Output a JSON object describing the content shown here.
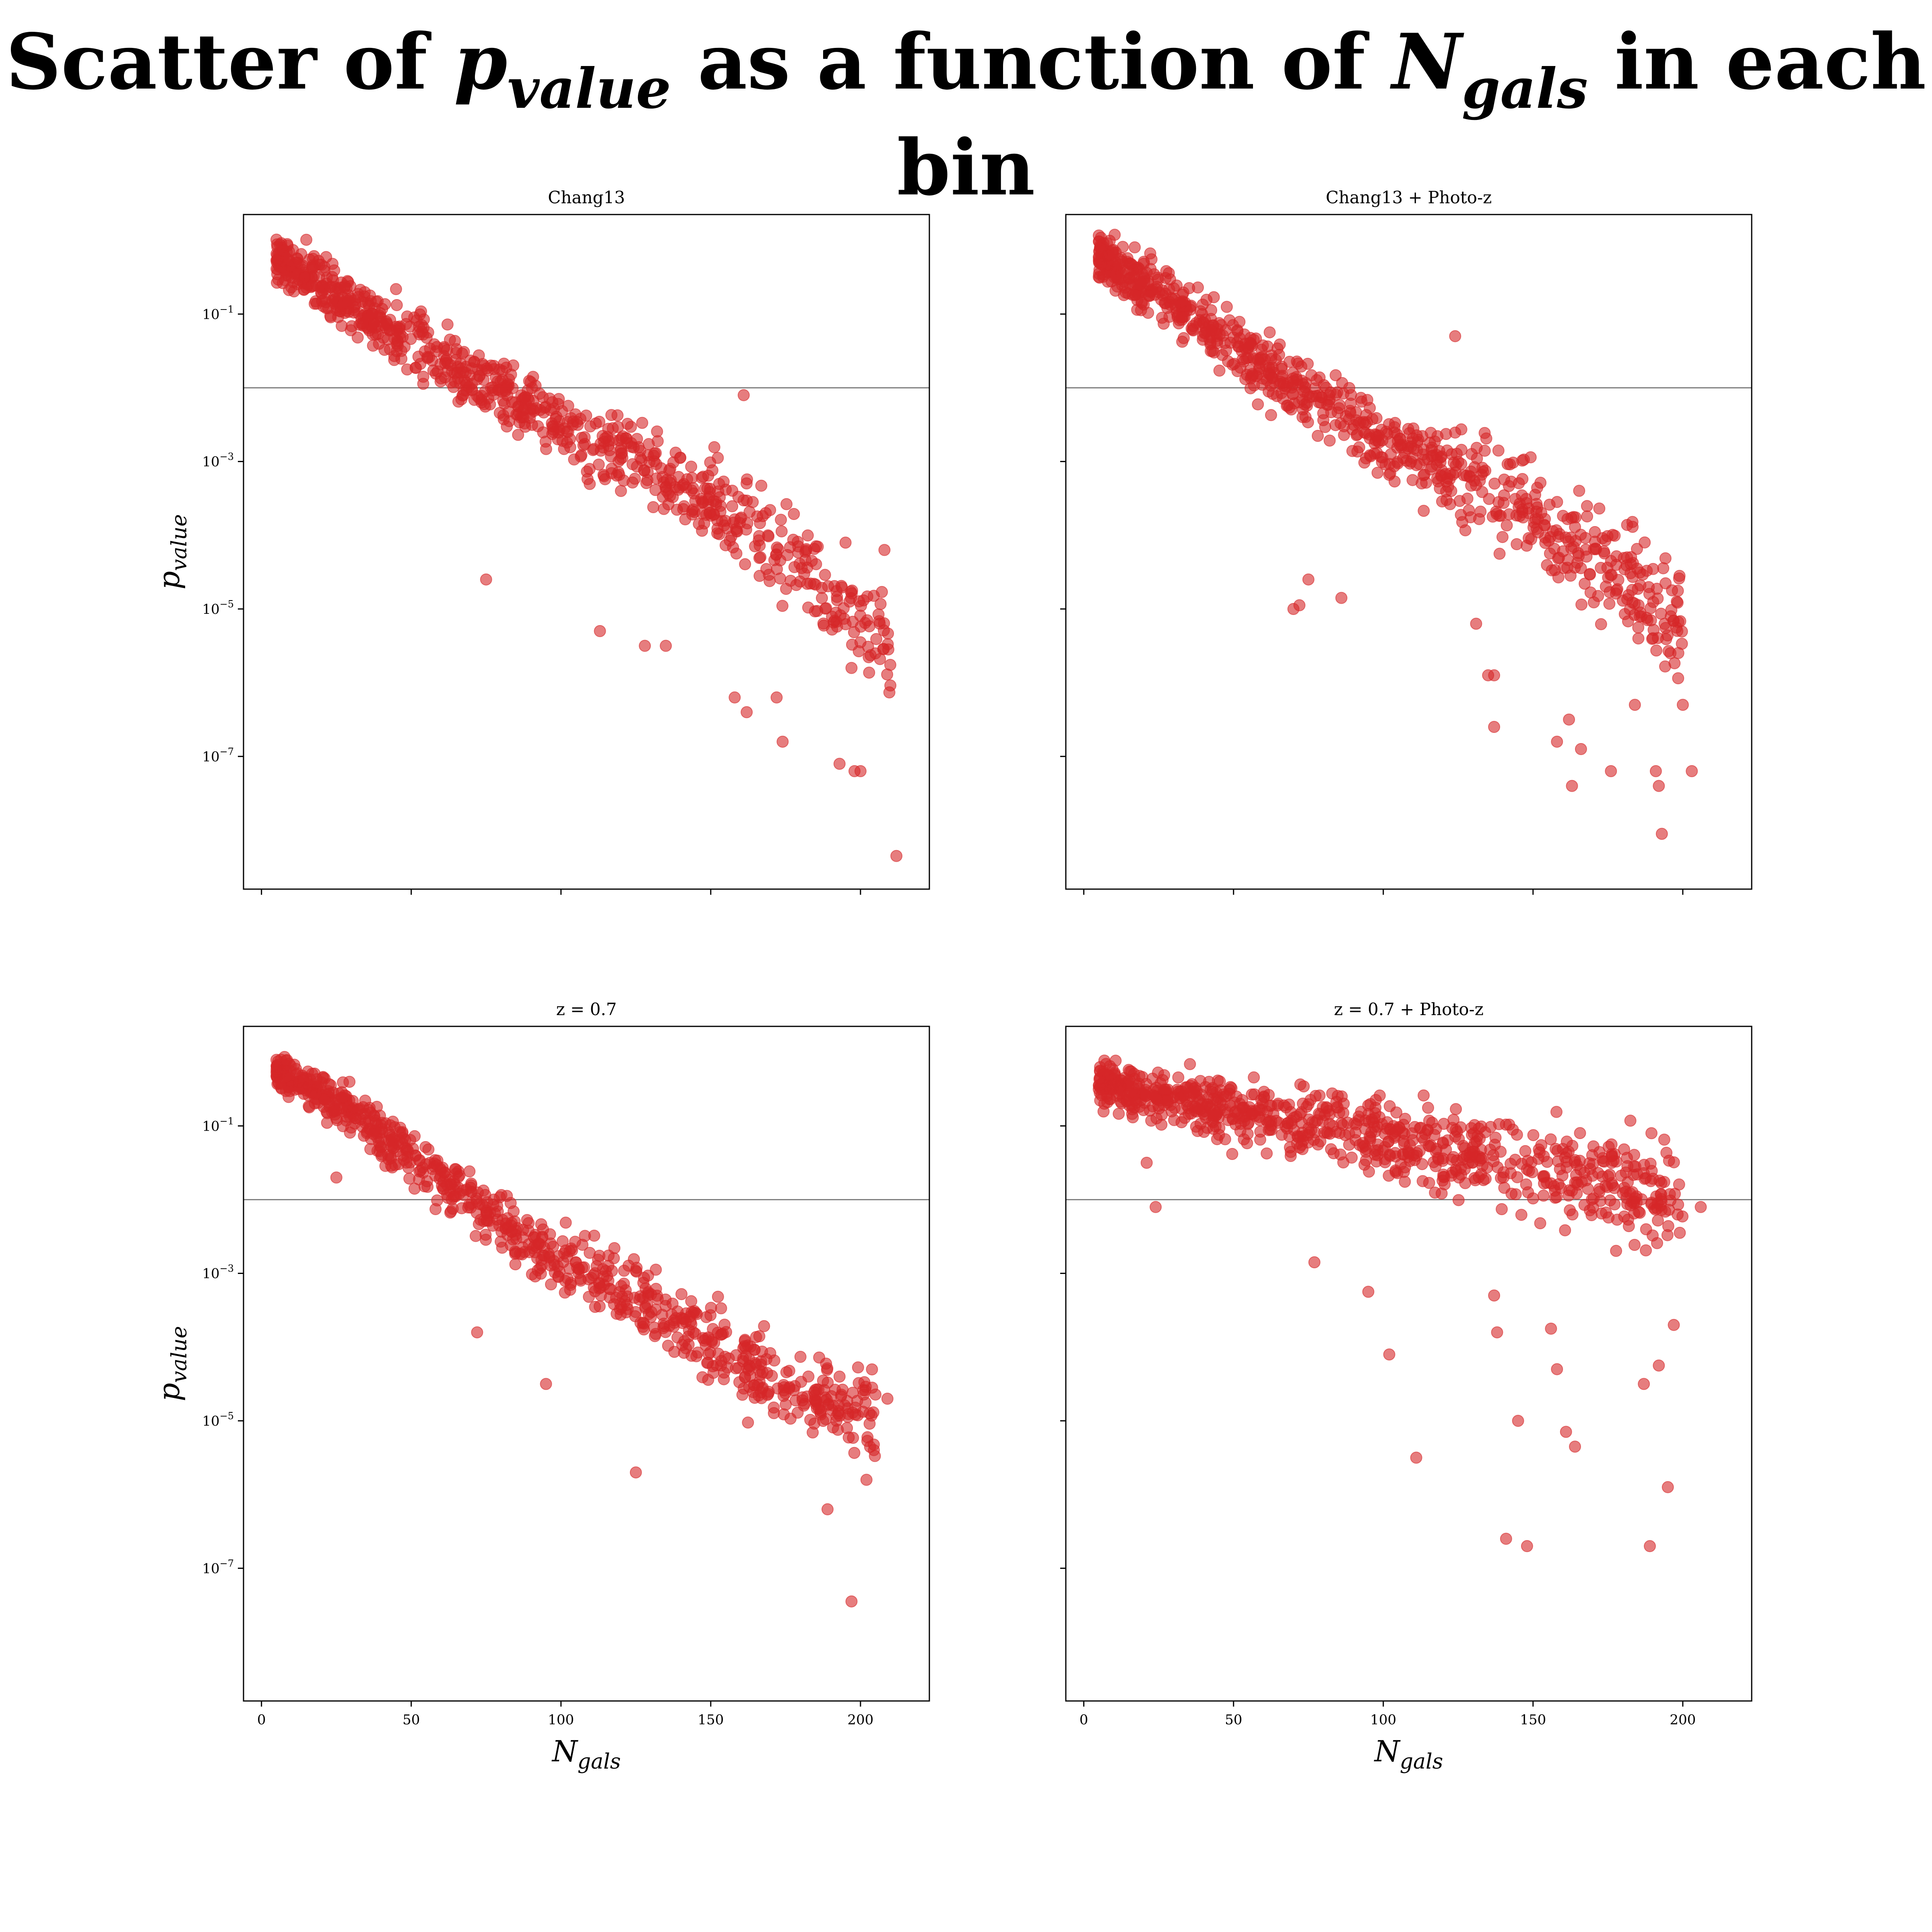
{
  "figure": {
    "title_parts": [
      "Scatter of ",
      "p",
      "value",
      " as a function of ",
      "N",
      "gals",
      " in each bin"
    ]
  },
  "style": {
    "marker_color": "#d62728",
    "marker_alpha": 0.6,
    "threshold_line_color": "#808080"
  },
  "chart_data": [
    {
      "type": "scatter",
      "title": "Chang13",
      "xlabel": "",
      "ylabel": "p_value",
      "xlim": [
        -6,
        223
      ],
      "ylim_log10": [
        -8.8,
        0.35
      ],
      "threshold": 0.01,
      "xticks": [
        "0",
        "50",
        "100",
        "150",
        "200"
      ],
      "yticks": [
        "10^-1",
        "10^-3",
        "10^-5",
        "10^-7"
      ],
      "show_xtick_labels": false,
      "show_ytick_labels": true,
      "trend": [
        [
          5,
          -0.25
        ],
        [
          30,
          -0.85
        ],
        [
          60,
          -1.6
        ],
        [
          90,
          -2.3
        ],
        [
          120,
          -2.9
        ],
        [
          150,
          -3.5
        ],
        [
          180,
          -4.4
        ],
        [
          210,
          -5.5
        ]
      ],
      "noise_sd": 0.35,
      "count": 850,
      "outliers": [
        [
          75,
          -4.6
        ],
        [
          113,
          -5.3
        ],
        [
          128,
          -5.5
        ],
        [
          135,
          -5.5
        ],
        [
          158,
          -6.2
        ],
        [
          162,
          -6.4
        ],
        [
          172,
          -6.2
        ],
        [
          174,
          -6.8
        ],
        [
          193,
          -7.1
        ],
        [
          198,
          -7.2
        ],
        [
          200,
          -7.2
        ],
        [
          212,
          -8.35
        ],
        [
          208,
          -4.2
        ],
        [
          197,
          -5.8
        ],
        [
          195,
          -4.1
        ],
        [
          161,
          -2.1
        ]
      ]
    },
    {
      "type": "scatter",
      "title": "Chang13 + Photo-z",
      "xlabel": "",
      "ylabel": "",
      "xlim": [
        -6,
        223
      ],
      "ylim_log10": [
        -8.8,
        0.35
      ],
      "threshold": 0.01,
      "xticks": [
        "0",
        "50",
        "100",
        "150",
        "200"
      ],
      "yticks": [
        "10^-1",
        "10^-3",
        "10^-5",
        "10^-7"
      ],
      "show_xtick_labels": false,
      "show_ytick_labels": false,
      "trend": [
        [
          5,
          -0.2
        ],
        [
          30,
          -0.85
        ],
        [
          60,
          -1.7
        ],
        [
          90,
          -2.5
        ],
        [
          120,
          -3.1
        ],
        [
          150,
          -3.7
        ],
        [
          180,
          -4.6
        ],
        [
          200,
          -5.3
        ]
      ],
      "noise_sd": 0.35,
      "count": 850,
      "outliers": [
        [
          70,
          -5.0
        ],
        [
          72,
          -4.95
        ],
        [
          75,
          -4.6
        ],
        [
          86,
          -4.85
        ],
        [
          124,
          -1.3
        ],
        [
          131,
          -5.2
        ],
        [
          135,
          -5.9
        ],
        [
          137,
          -5.9
        ],
        [
          137,
          -6.6
        ],
        [
          158,
          -6.8
        ],
        [
          162,
          -6.5
        ],
        [
          163,
          -7.4
        ],
        [
          166,
          -6.9
        ],
        [
          176,
          -7.2
        ],
        [
          184,
          -6.3
        ],
        [
          191,
          -7.2
        ],
        [
          192,
          -7.4
        ],
        [
          193,
          -8.05
        ],
        [
          200,
          -6.3
        ],
        [
          203,
          -7.2
        ],
        [
          198,
          -4.9
        ]
      ]
    },
    {
      "type": "scatter",
      "title": "z = 0.7",
      "xlabel": "N_gals",
      "ylabel": "p_value",
      "xlim": [
        -6,
        223
      ],
      "ylim_log10": [
        -8.8,
        0.35
      ],
      "threshold": 0.01,
      "xticks": [
        "0",
        "50",
        "100",
        "150",
        "200"
      ],
      "yticks": [
        "10^-1",
        "10^-3",
        "10^-5",
        "10^-7"
      ],
      "show_xtick_labels": true,
      "show_ytick_labels": true,
      "trend": [
        [
          5,
          -0.2
        ],
        [
          30,
          -0.8
        ],
        [
          60,
          -1.75
        ],
        [
          90,
          -2.6
        ],
        [
          120,
          -3.2
        ],
        [
          150,
          -4.0
        ],
        [
          180,
          -4.7
        ],
        [
          205,
          -5.0
        ]
      ],
      "noise_sd": 0.3,
      "count": 850,
      "outliers": [
        [
          25,
          -1.7
        ],
        [
          72,
          -3.8
        ],
        [
          95,
          -4.5
        ],
        [
          125,
          -5.7
        ],
        [
          189,
          -6.2
        ],
        [
          197,
          -7.45
        ],
        [
          202,
          -5.8
        ],
        [
          209,
          -4.7
        ],
        [
          193,
          -4.4
        ]
      ]
    },
    {
      "type": "scatter",
      "title": "z = 0.7 + Photo-z",
      "xlabel": "N_gals",
      "ylabel": "",
      "xlim": [
        -6,
        223
      ],
      "ylim_log10": [
        -8.8,
        0.35
      ],
      "threshold": 0.01,
      "xticks": [
        "0",
        "50",
        "100",
        "150",
        "200"
      ],
      "yticks": [
        "10^-1",
        "10^-3",
        "10^-5",
        "10^-7"
      ],
      "show_xtick_labels": true,
      "show_ytick_labels": false,
      "trend": [
        [
          5,
          -0.45
        ],
        [
          40,
          -0.75
        ],
        [
          80,
          -1.0
        ],
        [
          120,
          -1.35
        ],
        [
          160,
          -1.65
        ],
        [
          200,
          -2.0
        ]
      ],
      "noise_sd": 0.35,
      "count": 850,
      "outliers": [
        [
          21,
          -1.5
        ],
        [
          24,
          -2.1
        ],
        [
          77,
          -2.85
        ],
        [
          95,
          -3.25
        ],
        [
          102,
          -4.1
        ],
        [
          111,
          -5.5
        ],
        [
          137,
          -3.3
        ],
        [
          138,
          -3.8
        ],
        [
          141,
          -6.6
        ],
        [
          148,
          -6.7
        ],
        [
          156,
          -3.75
        ],
        [
          158,
          -4.3
        ],
        [
          161,
          -5.15
        ],
        [
          164,
          -5.35
        ],
        [
          145,
          -5.0
        ],
        [
          189,
          -6.7
        ],
        [
          195,
          -5.9
        ],
        [
          187,
          -4.5
        ],
        [
          197,
          -3.7
        ],
        [
          192,
          -4.25
        ],
        [
          206,
          -2.1
        ],
        [
          199,
          -2.45
        ]
      ]
    }
  ]
}
